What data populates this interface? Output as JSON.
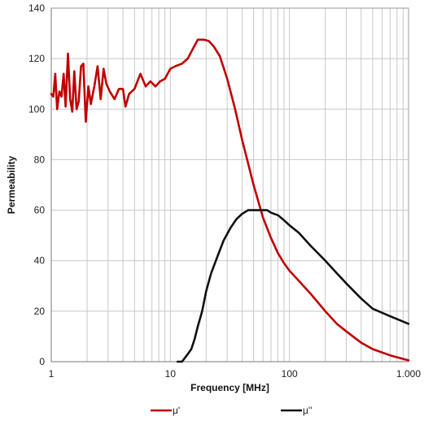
{
  "chart_data": {
    "type": "line",
    "title": "",
    "xlabel": "Frequency [MHz]",
    "ylabel": "Permeability",
    "x_scale": "log",
    "xlim": [
      1,
      1000
    ],
    "ylim": [
      0,
      140
    ],
    "x_ticks": [
      {
        "value": 1,
        "label": "1"
      },
      {
        "value": 10,
        "label": "10"
      },
      {
        "value": 100,
        "label": "100"
      },
      {
        "value": 1000,
        "label": "1.000"
      }
    ],
    "y_ticks": [
      0,
      20,
      40,
      60,
      80,
      100,
      120,
      140
    ],
    "grid": true,
    "legend_position": "bottom",
    "series": [
      {
        "name": "μ'",
        "color": "#c00000",
        "x": [
          1.0,
          1.04,
          1.08,
          1.12,
          1.17,
          1.22,
          1.27,
          1.32,
          1.38,
          1.44,
          1.5,
          1.56,
          1.63,
          1.7,
          1.78,
          1.86,
          1.95,
          2.05,
          2.15,
          2.3,
          2.45,
          2.6,
          2.75,
          2.9,
          3.1,
          3.4,
          3.7,
          4.0,
          4.2,
          4.5,
          5.0,
          5.6,
          6.2,
          6.8,
          7.5,
          8.2,
          9.0,
          10.0,
          11.0,
          12.5,
          14.0,
          15.5,
          17.0,
          19.0,
          21.0,
          23.0,
          26.0,
          30.0,
          35.0,
          40.0,
          50.0,
          60.0,
          70.0,
          80.0,
          90.0,
          100,
          120,
          150,
          200,
          250,
          300,
          400,
          500,
          700,
          1000
        ],
        "y": [
          106,
          105,
          114,
          100,
          107,
          105,
          114,
          101,
          122,
          104,
          99,
          115,
          100,
          103,
          117,
          118,
          95,
          109,
          102,
          109,
          117,
          104,
          116,
          110,
          107,
          104,
          108,
          108,
          101,
          106,
          108,
          114,
          109,
          111,
          109,
          111,
          112,
          116,
          117,
          118,
          120,
          124,
          127.5,
          127.5,
          127,
          125,
          121,
          112,
          100,
          88,
          70,
          57,
          49,
          43,
          39,
          36,
          32,
          27,
          20,
          15,
          12,
          7.5,
          5,
          2.5,
          0.5
        ]
      },
      {
        "name": "μ''",
        "color": "#111111",
        "x": [
          11.5,
          12.5,
          13.0,
          14.0,
          15.0,
          16.0,
          17.0,
          18.5,
          20.0,
          22.0,
          25.0,
          28.0,
          32.0,
          36.0,
          40.0,
          45.0,
          50.0,
          55.0,
          60.0,
          65.0,
          70.0,
          80.0,
          90.0,
          100,
          120,
          150,
          200,
          250,
          300,
          400,
          500,
          700,
          1000
        ],
        "y": [
          0,
          0,
          1,
          3,
          5,
          9,
          14,
          20,
          28,
          35,
          42,
          48,
          53,
          56.5,
          58.5,
          60,
          60,
          60,
          60,
          60,
          59,
          58,
          56,
          54,
          51,
          46,
          40,
          35,
          31,
          25,
          21,
          18,
          15
        ]
      }
    ]
  }
}
